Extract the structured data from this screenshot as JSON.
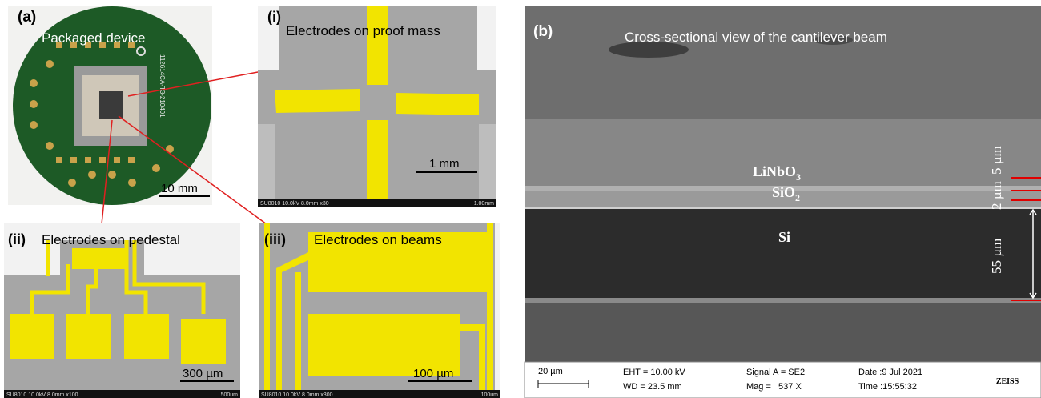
{
  "panel_a": {
    "label": "(a)",
    "title": "Packaged device",
    "pcb_text": "112614CA-T3-210401",
    "scale_bar": "10 mm"
  },
  "panel_i": {
    "label": "(i)",
    "title": "Electrodes on proof mass",
    "scale_bar": "1 mm",
    "info": "SU8010 10.0kV 8.0mm x30",
    "info_scale": "1.00mm"
  },
  "panel_ii": {
    "label": "(ii)",
    "title": "Electrodes on pedestal",
    "scale_bar": "300 µm",
    "info": "SU8010 10.0kV 8.0mm x100",
    "info_scale": "500um"
  },
  "panel_iii": {
    "label": "(iii)",
    "title": "Electrodes on beams",
    "scale_bar": "100 µm",
    "info": "SU8010 10.0kV 8.0mm x300",
    "info_scale": "100um"
  },
  "panel_b": {
    "label": "(b)",
    "title": "Cross-sectional view of the cantilever beam",
    "layers": [
      {
        "name": "LiNbO",
        "sub": "3"
      },
      {
        "name": "SiO",
        "sub": "2"
      },
      {
        "name": "Si"
      }
    ],
    "thicknesses": [
      "5 µm",
      "2 µm",
      "55 µm"
    ],
    "scale_bar": "20 µm",
    "info": {
      "eht": "EHT = 10.00 kV",
      "wd": "WD = 23.5 mm",
      "signal": "Signal A = SE2",
      "mag": "Mag =   537 X",
      "date": "Date :9 Jul 2021",
      "time": "Time :15:55:32"
    },
    "logo": "ZEISS"
  }
}
